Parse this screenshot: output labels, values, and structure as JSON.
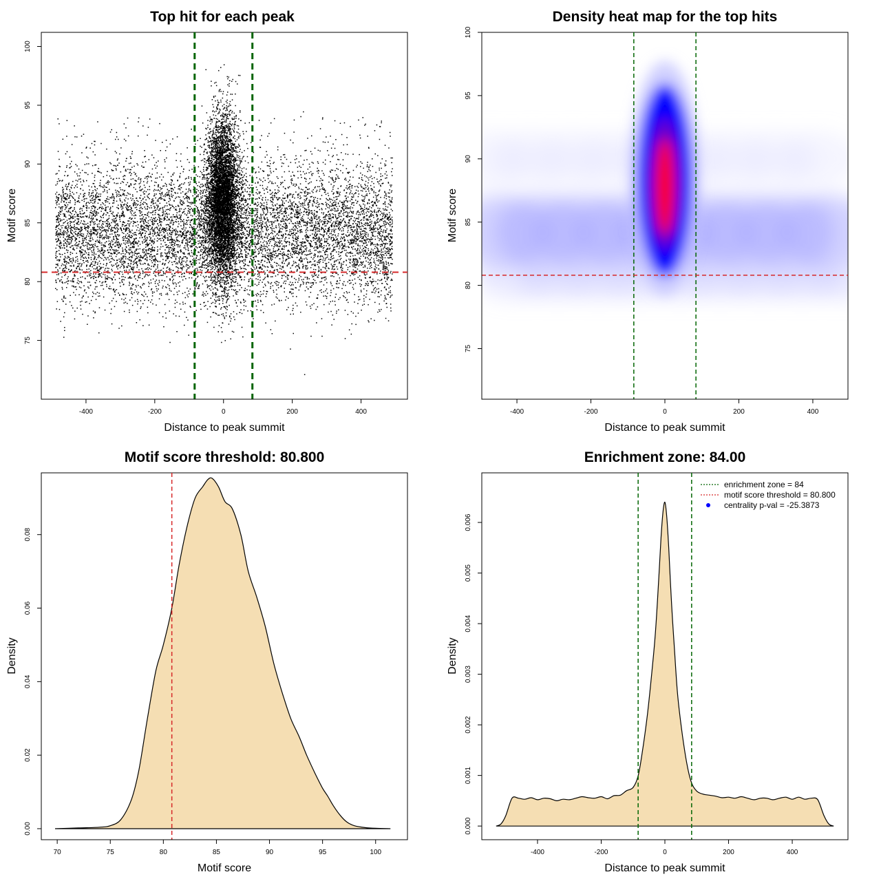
{
  "chart_data": [
    {
      "id": "scatter",
      "type": "scatter",
      "title": "Top hit for each peak",
      "xlabel": "Distance to peak summit",
      "ylabel": "Motif score",
      "xlim": [
        -530,
        535
      ],
      "ylim": [
        70,
        101.2
      ],
      "xticks": [
        -400,
        -200,
        0,
        200,
        400
      ],
      "yticks": [
        75,
        80,
        85,
        90,
        95,
        100
      ],
      "point_color": "#000000",
      "background_points": 9000,
      "central_points": 6500,
      "enrichment_lines_x": [
        -84,
        84
      ],
      "enrichment_color": "#006400",
      "threshold_y": 80.8,
      "threshold_color": "#d62728"
    },
    {
      "id": "heatmap",
      "type": "heatmap",
      "title": "Density heat map for the top hits",
      "xlabel": "Distance to peak summit",
      "ylabel": "Motif score",
      "xlim": [
        -495,
        495
      ],
      "ylim": [
        71,
        100
      ],
      "xticks": [
        -400,
        -200,
        0,
        200,
        400
      ],
      "yticks": [
        75,
        80,
        85,
        90,
        95,
        100
      ],
      "colors": [
        "#ffffff",
        "#0000ff",
        "#ff0000"
      ],
      "peak_center": [
        0,
        88
      ],
      "enrichment_lines_x": [
        -84,
        84
      ],
      "enrichment_color": "#006400",
      "threshold_y": 80.8,
      "threshold_color": "#d62728"
    },
    {
      "id": "score_density",
      "type": "area",
      "title": "Motif score threshold: 80.800",
      "xlabel": "Motif score",
      "ylabel": "Density",
      "xlim": [
        68.5,
        103
      ],
      "ylim": [
        -0.003,
        0.0968
      ],
      "xticks": [
        70,
        75,
        80,
        85,
        90,
        95,
        100
      ],
      "yticks": [
        0.0,
        0.02,
        0.04,
        0.06,
        0.08
      ],
      "ytick_labels": [
        "0.00",
        "0.02",
        "0.04",
        "0.06",
        "0.08"
      ],
      "fill_color": "#f5deb3",
      "x": [
        69.8,
        72,
        74,
        75,
        76,
        77,
        77.7,
        78.5,
        79.3,
        80,
        80.8,
        81.5,
        82.3,
        83,
        83.7,
        84.2,
        84.6,
        85.2,
        85.8,
        86.5,
        87.3,
        88,
        88.8,
        89.6,
        90.4,
        91.2,
        92,
        92.8,
        93.5,
        94.3,
        95,
        95.5,
        96,
        96.7,
        97.3,
        98,
        99,
        100,
        101.4
      ],
      "y": [
        0,
        0.0002,
        0.0004,
        0.0008,
        0.0025,
        0.008,
        0.016,
        0.03,
        0.043,
        0.05,
        0.06,
        0.072,
        0.083,
        0.09,
        0.093,
        0.095,
        0.0953,
        0.093,
        0.089,
        0.087,
        0.08,
        0.07,
        0.063,
        0.055,
        0.045,
        0.037,
        0.03,
        0.025,
        0.02,
        0.015,
        0.011,
        0.0088,
        0.0063,
        0.0035,
        0.0018,
        0.0008,
        0.0003,
        0.0001,
        0
      ],
      "threshold_x": 80.8,
      "threshold_color": "#d62728"
    },
    {
      "id": "distance_density",
      "type": "area",
      "title": "Enrichment zone: 84.00",
      "xlabel": "Distance to peak summit",
      "ylabel": "Density",
      "xlim": [
        -575,
        575
      ],
      "ylim": [
        -0.00027,
        0.00698
      ],
      "xticks": [
        -400,
        -200,
        0,
        200,
        400
      ],
      "yticks": [
        0.0,
        0.001,
        0.002,
        0.003,
        0.004,
        0.005,
        0.006
      ],
      "ytick_labels": [
        "0.000",
        "0.001",
        "0.002",
        "0.003",
        "0.004",
        "0.005",
        "0.006"
      ],
      "fill_color": "#f5deb3",
      "x": [
        -530,
        -515,
        -500,
        -480,
        -460,
        -440,
        -420,
        -400,
        -380,
        -360,
        -340,
        -320,
        -300,
        -280,
        -260,
        -240,
        -220,
        -200,
        -180,
        -160,
        -140,
        -120,
        -100,
        -84,
        -70,
        -55,
        -40,
        -30,
        -20,
        -12,
        -6,
        0,
        6,
        12,
        20,
        30,
        40,
        55,
        70,
        84,
        100,
        120,
        140,
        160,
        180,
        200,
        220,
        240,
        260,
        280,
        300,
        320,
        340,
        360,
        380,
        400,
        420,
        440,
        460,
        480,
        500,
        515,
        530
      ],
      "y": [
        0,
        4e-05,
        0.0002,
        0.00055,
        0.00055,
        0.00053,
        0.00056,
        0.00052,
        0.00055,
        0.00054,
        0.0005,
        0.00053,
        0.00052,
        0.00055,
        0.00058,
        0.00056,
        0.00055,
        0.00058,
        0.00054,
        0.0006,
        0.00061,
        0.0007,
        0.00076,
        0.00099,
        0.0015,
        0.0022,
        0.0031,
        0.0038,
        0.0048,
        0.0057,
        0.0062,
        0.0064,
        0.0061,
        0.0055,
        0.0045,
        0.0035,
        0.0026,
        0.0018,
        0.0012,
        0.00085,
        0.00069,
        0.00063,
        0.00061,
        0.00059,
        0.00056,
        0.00057,
        0.00055,
        0.00058,
        0.00055,
        0.00052,
        0.00055,
        0.00055,
        0.00052,
        0.00055,
        0.00057,
        0.00053,
        0.00057,
        0.00053,
        0.00055,
        0.00052,
        0.0002,
        4e-05,
        0
      ],
      "enrichment_lines_x": [
        -84,
        84
      ],
      "enrichment_color": "#006400",
      "legend_position": "top-right",
      "legend": [
        {
          "label": "enrichment zone = 84",
          "color": "#006400",
          "style": "dotted"
        },
        {
          "label": "motif score threshold = 80.800",
          "color": "#d62728",
          "style": "dotted"
        },
        {
          "label": "centrality p-val = -25.3873",
          "color": "#0000ff",
          "style": "point"
        }
      ]
    }
  ]
}
